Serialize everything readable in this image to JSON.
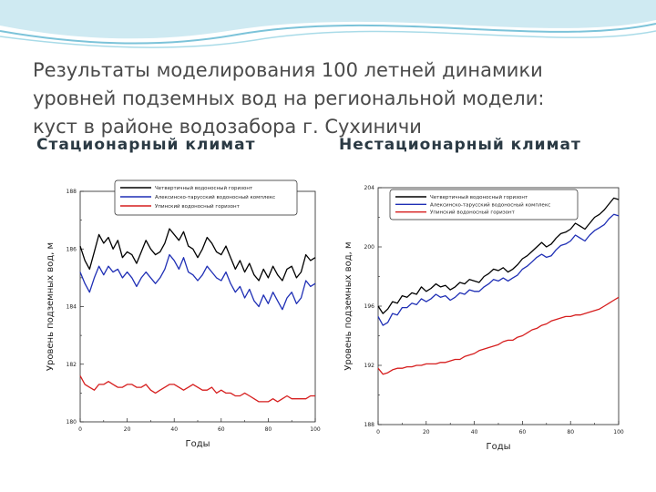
{
  "slide": {
    "title_lines": [
      "Результаты моделирования 100 летней динамики",
      "уровней подземных вод на региональной модели:",
      "куст в районе водозабора г. Сухиничи"
    ],
    "colors": {
      "background_wave": "#cfeaf2",
      "wave_line": "#7cc3d9",
      "title": "#4a4a4a"
    }
  },
  "panels": [
    {
      "heading": "Стационарный климат"
    },
    {
      "heading": "Нестационарный климат"
    }
  ],
  "chart_data": [
    {
      "type": "line",
      "xlabel": "Годы",
      "ylabel": "Уровень подземных вод, м",
      "xlim": [
        0,
        100
      ],
      "ylim": [
        180,
        188
      ],
      "x_ticks": [
        "0",
        "20",
        "40",
        "60",
        "80",
        "100"
      ],
      "y_ticks": [
        "180",
        "182",
        "184",
        "186",
        "188"
      ],
      "legend_position": "top",
      "series": [
        {
          "name": "Четвертичный водоносный горизонт",
          "color": "#000000",
          "x": [
            0,
            2,
            4,
            6,
            8,
            10,
            12,
            14,
            16,
            18,
            20,
            22,
            24,
            26,
            28,
            30,
            32,
            34,
            36,
            38,
            40,
            42,
            44,
            46,
            48,
            50,
            52,
            54,
            56,
            58,
            60,
            62,
            64,
            66,
            68,
            70,
            72,
            74,
            76,
            78,
            80,
            82,
            84,
            86,
            88,
            90,
            92,
            94,
            96,
            98,
            100
          ],
          "y": [
            186.1,
            185.6,
            185.3,
            185.9,
            186.5,
            186.2,
            186.4,
            186.0,
            186.3,
            185.7,
            185.9,
            185.8,
            185.5,
            185.9,
            186.3,
            186.0,
            185.8,
            185.9,
            186.2,
            186.7,
            186.5,
            186.3,
            186.6,
            186.1,
            186.0,
            185.7,
            186.0,
            186.4,
            186.2,
            185.9,
            185.8,
            186.1,
            185.7,
            185.3,
            185.6,
            185.2,
            185.5,
            185.1,
            184.9,
            185.3,
            185.0,
            185.4,
            185.1,
            184.9,
            185.3,
            185.4,
            185.0,
            185.2,
            185.8,
            185.6,
            185.7
          ]
        },
        {
          "name": "Алексинско-тарусский водоносный комплекс",
          "color": "#1f2fb5",
          "x": [
            0,
            2,
            4,
            6,
            8,
            10,
            12,
            14,
            16,
            18,
            20,
            22,
            24,
            26,
            28,
            30,
            32,
            34,
            36,
            38,
            40,
            42,
            44,
            46,
            48,
            50,
            52,
            54,
            56,
            58,
            60,
            62,
            64,
            66,
            68,
            70,
            72,
            74,
            76,
            78,
            80,
            82,
            84,
            86,
            88,
            90,
            92,
            94,
            96,
            98,
            100
          ],
          "y": [
            185.2,
            184.8,
            184.5,
            185.0,
            185.4,
            185.1,
            185.4,
            185.2,
            185.3,
            185.0,
            185.2,
            185.0,
            184.7,
            185.0,
            185.2,
            185.0,
            184.8,
            185.0,
            185.3,
            185.8,
            185.6,
            185.3,
            185.7,
            185.2,
            185.1,
            184.9,
            185.1,
            185.4,
            185.2,
            185.0,
            184.9,
            185.2,
            184.8,
            184.5,
            184.7,
            184.3,
            184.6,
            184.2,
            184.0,
            184.4,
            184.1,
            184.5,
            184.2,
            183.9,
            184.3,
            184.5,
            184.1,
            184.3,
            184.9,
            184.7,
            184.8
          ]
        },
        {
          "name": "Упинский водоносный горизонт",
          "color": "#d61e1e",
          "x": [
            0,
            2,
            4,
            6,
            8,
            10,
            12,
            14,
            16,
            18,
            20,
            22,
            24,
            26,
            28,
            30,
            32,
            34,
            36,
            38,
            40,
            42,
            44,
            46,
            48,
            50,
            52,
            54,
            56,
            58,
            60,
            62,
            64,
            66,
            68,
            70,
            72,
            74,
            76,
            78,
            80,
            82,
            84,
            86,
            88,
            90,
            92,
            94,
            96,
            98,
            100
          ],
          "y": [
            181.6,
            181.3,
            181.2,
            181.1,
            181.3,
            181.3,
            181.4,
            181.3,
            181.2,
            181.2,
            181.3,
            181.3,
            181.2,
            181.2,
            181.3,
            181.1,
            181.0,
            181.1,
            181.2,
            181.3,
            181.3,
            181.2,
            181.1,
            181.2,
            181.3,
            181.2,
            181.1,
            181.1,
            181.2,
            181.0,
            181.1,
            181.0,
            181.0,
            180.9,
            180.9,
            181.0,
            180.9,
            180.8,
            180.7,
            180.7,
            180.7,
            180.8,
            180.7,
            180.8,
            180.9,
            180.8,
            180.8,
            180.8,
            180.8,
            180.9,
            180.9
          ]
        }
      ]
    },
    {
      "type": "line",
      "xlabel": "Годы",
      "ylabel": "Уровень подземных вод, м",
      "xlim": [
        0,
        100
      ],
      "ylim": [
        188,
        204
      ],
      "x_ticks": [
        "0",
        "20",
        "40",
        "60",
        "80",
        "100"
      ],
      "y_ticks": [
        "188",
        "192",
        "196",
        "200",
        "204"
      ],
      "legend_position": "top-left",
      "series": [
        {
          "name": "Четвертичный водоносный горизонт",
          "color": "#000000",
          "x": [
            0,
            2,
            4,
            6,
            8,
            10,
            12,
            14,
            16,
            18,
            20,
            22,
            24,
            26,
            28,
            30,
            32,
            34,
            36,
            38,
            40,
            42,
            44,
            46,
            48,
            50,
            52,
            54,
            56,
            58,
            60,
            62,
            64,
            66,
            68,
            70,
            72,
            74,
            76,
            78,
            80,
            82,
            84,
            86,
            88,
            90,
            92,
            94,
            96,
            98,
            100
          ],
          "y": [
            196.0,
            195.5,
            195.8,
            196.3,
            196.2,
            196.7,
            196.6,
            196.9,
            196.8,
            197.3,
            197.0,
            197.2,
            197.5,
            197.3,
            197.4,
            197.1,
            197.3,
            197.6,
            197.5,
            197.8,
            197.7,
            197.6,
            198.0,
            198.2,
            198.5,
            198.4,
            198.6,
            198.3,
            198.5,
            198.8,
            199.2,
            199.4,
            199.7,
            200.0,
            200.3,
            200.0,
            200.2,
            200.6,
            200.9,
            201.0,
            201.2,
            201.6,
            201.4,
            201.2,
            201.6,
            202.0,
            202.2,
            202.5,
            202.9,
            203.3,
            203.2
          ]
        },
        {
          "name": "Алексинско-тарусский водоносный комплекс",
          "color": "#1f2fb5",
          "x": [
            0,
            2,
            4,
            6,
            8,
            10,
            12,
            14,
            16,
            18,
            20,
            22,
            24,
            26,
            28,
            30,
            32,
            34,
            36,
            38,
            40,
            42,
            44,
            46,
            48,
            50,
            52,
            54,
            56,
            58,
            60,
            62,
            64,
            66,
            68,
            70,
            72,
            74,
            76,
            78,
            80,
            82,
            84,
            86,
            88,
            90,
            92,
            94,
            96,
            98,
            100
          ],
          "y": [
            195.3,
            194.7,
            194.9,
            195.5,
            195.4,
            195.9,
            195.9,
            196.2,
            196.1,
            196.5,
            196.3,
            196.5,
            196.8,
            196.6,
            196.7,
            196.4,
            196.6,
            196.9,
            196.8,
            197.1,
            197.0,
            197.0,
            197.3,
            197.5,
            197.8,
            197.7,
            197.9,
            197.7,
            197.9,
            198.1,
            198.5,
            198.7,
            199.0,
            199.3,
            199.5,
            199.3,
            199.4,
            199.8,
            200.1,
            200.2,
            200.4,
            200.8,
            200.6,
            200.4,
            200.8,
            201.1,
            201.3,
            201.5,
            201.9,
            202.2,
            202.1
          ]
        },
        {
          "name": "Упинский водоносный горизонт",
          "color": "#d61e1e",
          "x": [
            0,
            2,
            4,
            6,
            8,
            10,
            12,
            14,
            16,
            18,
            20,
            22,
            24,
            26,
            28,
            30,
            32,
            34,
            36,
            38,
            40,
            42,
            44,
            46,
            48,
            50,
            52,
            54,
            56,
            58,
            60,
            62,
            64,
            66,
            68,
            70,
            72,
            74,
            76,
            78,
            80,
            82,
            84,
            86,
            88,
            90,
            92,
            94,
            96,
            98,
            100
          ],
          "y": [
            191.8,
            191.4,
            191.5,
            191.7,
            191.8,
            191.8,
            191.9,
            191.9,
            192.0,
            192.0,
            192.1,
            192.1,
            192.1,
            192.2,
            192.2,
            192.3,
            192.4,
            192.4,
            192.6,
            192.7,
            192.8,
            193.0,
            193.1,
            193.2,
            193.3,
            193.4,
            193.6,
            193.7,
            193.7,
            193.9,
            194.0,
            194.2,
            194.4,
            194.5,
            194.7,
            194.8,
            195.0,
            195.1,
            195.2,
            195.3,
            195.3,
            195.4,
            195.4,
            195.5,
            195.6,
            195.7,
            195.8,
            196.0,
            196.2,
            196.4,
            196.6
          ]
        }
      ]
    }
  ]
}
